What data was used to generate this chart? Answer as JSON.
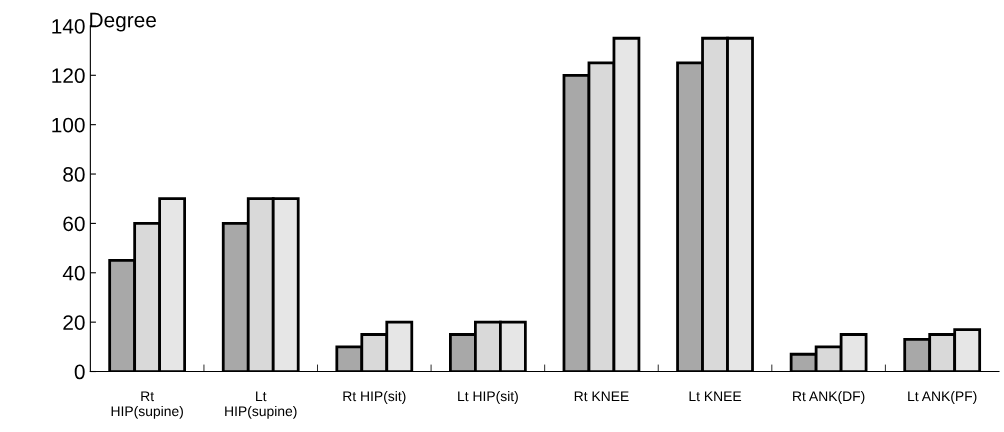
{
  "chart_data": {
    "type": "bar",
    "ylabel": "Degree",
    "categories": [
      "Rt\nHIP(supine)",
      "Lt\nHIP(supine)",
      "Rt HIP(sit)",
      "Lt HIP(sit)",
      "Rt KNEE",
      "Lt KNEE",
      "Rt ANK(DF)",
      "Lt ANK(PF)"
    ],
    "series": [
      {
        "color": "#a8a8a8",
        "values": [
          45,
          60,
          10,
          15,
          120,
          125,
          7,
          13
        ]
      },
      {
        "color": "#d9d9d9",
        "values": [
          60,
          70,
          15,
          20,
          125,
          135,
          10,
          15
        ]
      },
      {
        "color": "#e6e6e6",
        "values": [
          70,
          70,
          20,
          20,
          135,
          135,
          15,
          17
        ]
      }
    ],
    "ylim": [
      0,
      140
    ],
    "yticks": [
      0,
      20,
      40,
      60,
      80,
      100,
      120,
      140
    ]
  }
}
